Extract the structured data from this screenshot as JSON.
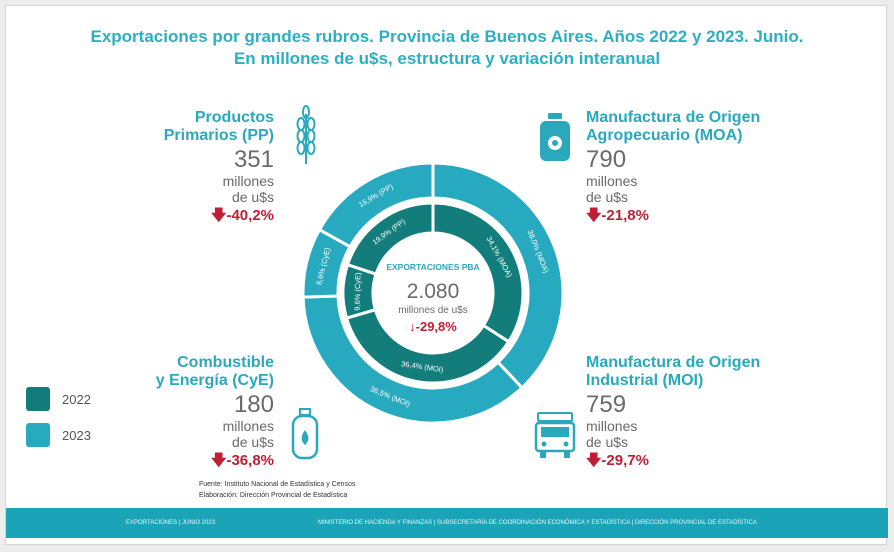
{
  "title": {
    "line1": "Exportaciones por grandes rubros. Provincia de Buenos Aires. Años 2022 y 2023. Junio.",
    "line2": "En millones de u$s, estructura y variación interanual"
  },
  "categories": {
    "pp": {
      "name1": "Productos",
      "name2": "Primarios (PP)",
      "amount": "351",
      "unit1": "millones",
      "unit2": "de u$s",
      "change": "-40,2%"
    },
    "moa": {
      "name1": "Manufactura de Origen",
      "name2": "Agropecuario (MOA)",
      "amount": "790",
      "unit1": "millones",
      "unit2": "de u$s",
      "change": "-21,8%"
    },
    "cye": {
      "name1": "Combustible",
      "name2": "y Energía (CyE)",
      "amount": "180",
      "unit1": "millones",
      "unit2": "de u$s",
      "change": "-36,8%"
    },
    "moi": {
      "name1": "Manufactura de Origen",
      "name2": "Industrial (MOI)",
      "amount": "759",
      "unit1": "millones",
      "unit2": "de u$s",
      "change": "-29,7%"
    }
  },
  "center": {
    "heading": "EXPORTACIONES PBA",
    "total": "2.080",
    "unit": "millones de u$s",
    "change": "-29,8%"
  },
  "legend": {
    "y2022": "2022",
    "y2023": "2023"
  },
  "source": {
    "line1": "Fuente: Instituto Nacional de Estadística y Censos",
    "line2": "Elaboración: Dirección Provincial de Estadística"
  },
  "footer": {
    "left": "EXPORTACIONES | JUNIO 2023",
    "right": "MINISTERIO DE HACIENDA Y FINANZAS  |  SUBSECRETARÍA DE COORDINACIÓN ECONÓMICA Y ESTADÍSTICA  |  DIRECCIÓN PROVINCIAL DE ESTADÍSTICA"
  },
  "icons": {
    "pp": "wheat-icon",
    "moa": "milk-can-icon",
    "cye": "gas-cylinder-icon",
    "moi": "truck-icon",
    "change": "arrow-down-icon"
  },
  "colors": {
    "title": "#2bb0c3",
    "label": "#2aa9bd",
    "inner_2022": "#137d7b",
    "outer_2023": "#27aabf",
    "negative": "#c01f33",
    "footer": "#1ba3b8"
  },
  "chart_data": {
    "type": "pie",
    "subtype": "nested-donut",
    "categories": [
      "MOA",
      "MOI",
      "CyE",
      "PP"
    ],
    "series": [
      {
        "name": "2022",
        "ring": "inner",
        "values": [
          34.1,
          36.4,
          9.6,
          19.9
        ],
        "labels": [
          "34,1% (MOA)",
          "36,4% (MOI)",
          "9,6% (CyE)",
          "19,9% (PP)"
        ]
      },
      {
        "name": "2023",
        "ring": "outer",
        "values": [
          38.0,
          36.5,
          8.6,
          16.9
        ],
        "labels": [
          "38,0% (MOA)",
          "36,5% (MOI)",
          "8,6% (CyE)",
          "16,9% (PP)"
        ]
      }
    ]
  }
}
